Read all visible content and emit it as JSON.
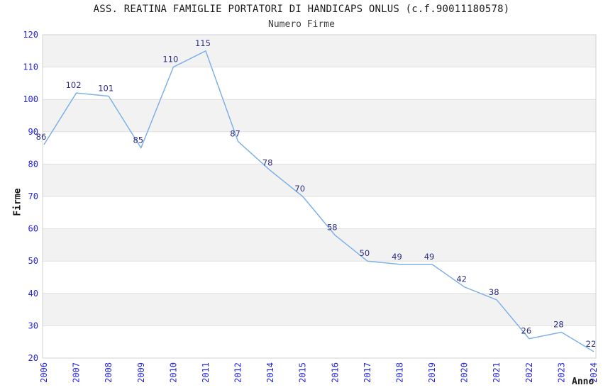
{
  "header": {
    "title": "ASS. REATINA FAMIGLIE PORTATORI DI HANDICAPS ONLUS (c.f.90011180578)",
    "subtitle": "Numero Firme"
  },
  "chart_data": {
    "type": "line",
    "title": "ASS. REATINA FAMIGLIE PORTATORI DI HANDICAPS ONLUS (c.f.90011180578)",
    "subtitle": "Numero Firme",
    "xlabel": "Anno",
    "ylabel": "Firme",
    "categories": [
      "2006",
      "2007",
      "2008",
      "2009",
      "2010",
      "2011",
      "2012",
      "2014",
      "2015",
      "2016",
      "2017",
      "2018",
      "2019",
      "2020",
      "2021",
      "2022",
      "2023",
      "2024"
    ],
    "values": [
      86,
      102,
      101,
      85,
      110,
      115,
      87,
      78,
      70,
      58,
      50,
      49,
      49,
      42,
      38,
      26,
      28,
      22
    ],
    "ylim": [
      20,
      120
    ],
    "ytick_step": 10,
    "yticks": [
      20,
      30,
      40,
      50,
      60,
      70,
      80,
      90,
      100,
      110,
      120
    ],
    "grid": "horizontal",
    "legend": "none",
    "point_labels": true,
    "colors": {
      "line": "#7fb1e8",
      "tick_label": "#2323e0",
      "data_label": "#2d2d86",
      "band_fill": "#f2f2f2",
      "gridline": "#e0e0e0",
      "plot_border": "#d2d2d2",
      "title": "#1c1c1c",
      "subtitle": "#3f3f3f"
    }
  }
}
